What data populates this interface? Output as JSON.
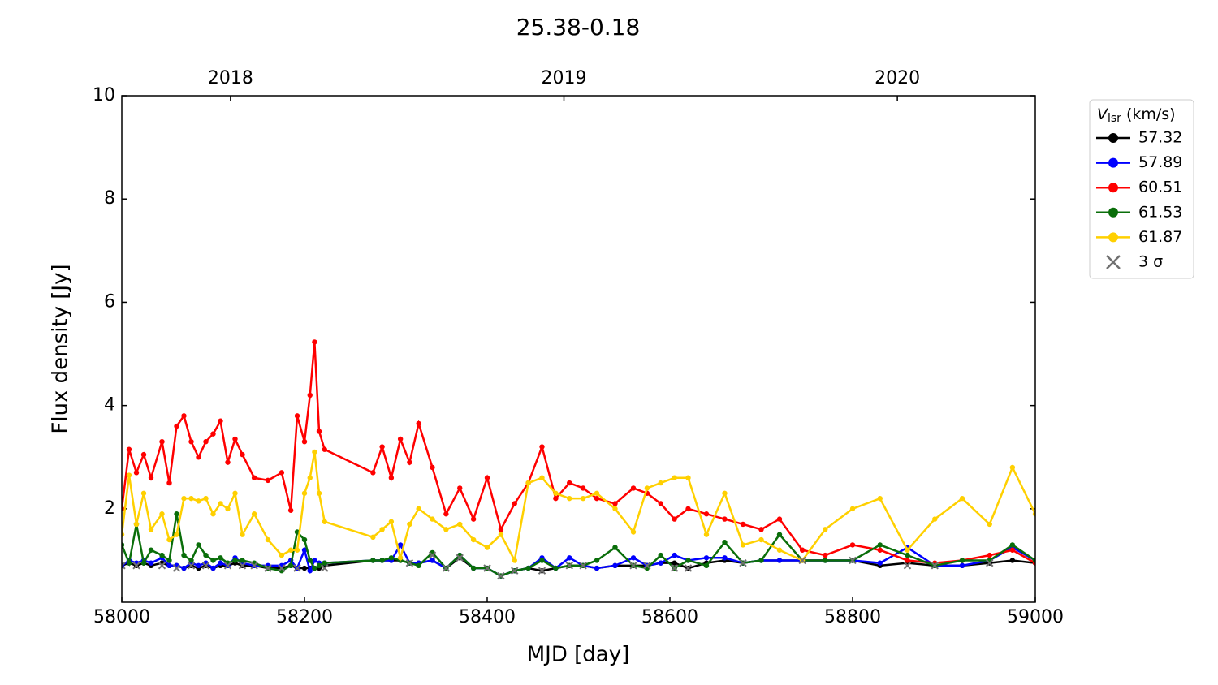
{
  "chart_data": {
    "type": "line",
    "title": "25.38-0.18",
    "x_label": "MJD [day]",
    "y_label": "Flux density [Jy]",
    "xlim": [
      58000,
      59000
    ],
    "xticks": [
      58000,
      58200,
      58400,
      58600,
      58800,
      59000
    ],
    "x2ticks": [
      {
        "value": 58119,
        "label": "2018"
      },
      {
        "value": 58484,
        "label": "2019"
      },
      {
        "value": 58849,
        "label": "2020"
      }
    ],
    "ylim": [
      0.19,
      10
    ],
    "yticks": [
      2,
      4,
      6,
      8,
      10
    ],
    "grid": false,
    "legend_position": "outside-right",
    "legend_title": {
      "symbol": "V",
      "subscript": "lsr",
      "unit": "(km/s)"
    },
    "x": [
      58000,
      58008,
      58016,
      58024,
      58032,
      58044,
      58052,
      58060,
      58068,
      58076,
      58084,
      58092,
      58100,
      58108,
      58116,
      58124,
      58132,
      58145,
      58160,
      58175,
      58185,
      58192,
      58200,
      58206,
      58211,
      58216,
      58222,
      58275,
      58285,
      58295,
      58305,
      58315,
      58325,
      58340,
      58355,
      58370,
      58385,
      58400,
      58415,
      58430,
      58445,
      58460,
      58475,
      58490,
      58505,
      58520,
      58540,
      58560,
      58575,
      58590,
      58605,
      58620,
      58640,
      58660,
      58680,
      58700,
      58720,
      58745,
      58770,
      58800,
      58830,
      58860,
      58890,
      58920,
      58950,
      58975,
      59000
    ],
    "series": [
      {
        "name": "57.32",
        "color": "#000000",
        "marker": "o",
        "values": [
          0.9,
          0.95,
          0.9,
          0.95,
          0.9,
          0.95,
          0.9,
          0.9,
          0.85,
          0.9,
          0.85,
          0.9,
          0.85,
          0.9,
          0.9,
          0.95,
          0.9,
          0.9,
          0.85,
          0.85,
          0.9,
          0.85,
          0.85,
          0.85,
          0.85,
          0.85,
          0.9,
          1.0,
          1.0,
          1.0,
          1.0,
          0.95,
          0.95,
          1.0,
          0.85,
          1.05,
          0.85,
          0.85,
          0.7,
          0.8,
          0.85,
          0.8,
          0.85,
          0.9,
          0.9,
          0.85,
          0.9,
          0.9,
          0.9,
          0.95,
          0.95,
          0.85,
          0.95,
          1.0,
          0.95,
          1.0,
          1.0,
          1.0,
          1.0,
          1.0,
          0.9,
          0.95,
          0.9,
          0.9,
          0.95,
          1.0,
          0.95
        ]
      },
      {
        "name": "57.89",
        "color": "#0000ff",
        "marker": "o",
        "values": [
          0.9,
          1.0,
          0.95,
          1.0,
          0.95,
          1.05,
          0.9,
          0.9,
          0.85,
          0.95,
          0.9,
          0.95,
          0.85,
          0.95,
          0.9,
          1.05,
          0.95,
          0.9,
          0.9,
          0.9,
          1.0,
          0.85,
          1.2,
          0.8,
          1.0,
          0.95,
          0.95,
          1.0,
          1.0,
          1.0,
          1.3,
          0.95,
          0.95,
          1.0,
          0.85,
          1.1,
          0.85,
          0.85,
          0.7,
          0.8,
          0.85,
          1.05,
          0.85,
          1.05,
          0.9,
          0.85,
          0.9,
          1.05,
          0.9,
          0.95,
          1.1,
          1.0,
          1.05,
          1.05,
          0.95,
          1.0,
          1.0,
          1.0,
          1.0,
          1.0,
          0.95,
          1.25,
          0.9,
          0.9,
          1.0,
          1.25,
          1.0
        ]
      },
      {
        "name": "60.51",
        "color": "#ff0000",
        "marker": "o",
        "values": [
          2.0,
          3.15,
          2.7,
          3.05,
          2.6,
          3.3,
          2.5,
          3.6,
          3.8,
          3.3,
          3.0,
          3.3,
          3.45,
          3.7,
          2.9,
          3.35,
          3.05,
          2.6,
          2.55,
          2.7,
          1.97,
          3.8,
          3.3,
          4.2,
          5.23,
          3.5,
          3.15,
          2.7,
          3.2,
          2.6,
          3.35,
          2.9,
          3.65,
          2.8,
          1.9,
          2.4,
          1.8,
          2.6,
          1.6,
          2.1,
          2.5,
          3.2,
          2.2,
          2.5,
          2.4,
          2.2,
          2.1,
          2.4,
          2.3,
          2.1,
          1.8,
          2.0,
          1.9,
          1.8,
          1.7,
          1.6,
          1.8,
          1.2,
          1.1,
          1.3,
          1.2,
          1.0,
          0.95,
          1.0,
          1.1,
          1.2,
          0.95
        ]
      },
      {
        "name": "61.53",
        "color": "#0a6e0a",
        "marker": "o",
        "values": [
          1.3,
          0.95,
          1.7,
          0.95,
          1.2,
          1.1,
          1.0,
          1.9,
          1.1,
          1.0,
          1.3,
          1.1,
          1.0,
          1.05,
          0.95,
          1.0,
          1.0,
          0.95,
          0.85,
          0.8,
          0.9,
          1.55,
          1.4,
          1.0,
          0.85,
          0.9,
          0.95,
          1.0,
          1.0,
          1.05,
          1.0,
          0.95,
          0.9,
          1.15,
          0.85,
          1.1,
          0.85,
          0.85,
          0.7,
          0.8,
          0.85,
          1.0,
          0.85,
          0.9,
          0.9,
          1.0,
          1.25,
          0.9,
          0.85,
          1.1,
          0.85,
          1.0,
          0.9,
          1.35,
          0.95,
          1.0,
          1.5,
          1.0,
          1.0,
          1.0,
          1.3,
          1.1,
          0.9,
          1.0,
          1.0,
          1.3,
          1.0
        ]
      },
      {
        "name": "61.87",
        "color": "#ffd000",
        "marker": "o",
        "values": [
          1.5,
          2.65,
          1.7,
          2.3,
          1.6,
          1.9,
          1.4,
          1.5,
          2.2,
          2.2,
          2.15,
          2.2,
          1.9,
          2.1,
          2.0,
          2.3,
          1.5,
          1.9,
          1.4,
          1.1,
          1.2,
          1.2,
          2.3,
          2.6,
          3.1,
          2.3,
          1.75,
          1.45,
          1.6,
          1.75,
          1.05,
          1.7,
          2.0,
          1.8,
          1.6,
          1.7,
          1.4,
          1.25,
          1.5,
          1.0,
          2.5,
          2.6,
          2.3,
          2.2,
          2.2,
          2.3,
          2.0,
          1.55,
          2.4,
          2.5,
          2.6,
          2.6,
          1.5,
          2.3,
          1.3,
          1.4,
          1.2,
          1.0,
          1.6,
          2.0,
          2.2,
          1.2,
          1.8,
          2.2,
          1.7,
          2.8,
          1.9
        ]
      },
      {
        "name": "3 σ",
        "color": "#707070",
        "marker": "x",
        "values": [
          0.9,
          null,
          0.9,
          null,
          null,
          0.9,
          null,
          0.85,
          null,
          0.9,
          null,
          0.9,
          null,
          null,
          0.9,
          null,
          0.9,
          0.9,
          0.85,
          0.85,
          null,
          0.85,
          null,
          null,
          null,
          null,
          0.85,
          null,
          null,
          null,
          null,
          0.95,
          null,
          1.1,
          0.85,
          1.05,
          null,
          0.85,
          0.7,
          0.8,
          null,
          0.8,
          null,
          0.9,
          0.9,
          null,
          null,
          0.9,
          0.9,
          null,
          0.85,
          0.85,
          null,
          null,
          0.95,
          null,
          null,
          1.0,
          null,
          1.0,
          null,
          0.9,
          0.9,
          null,
          0.95,
          null,
          null
        ]
      }
    ]
  }
}
